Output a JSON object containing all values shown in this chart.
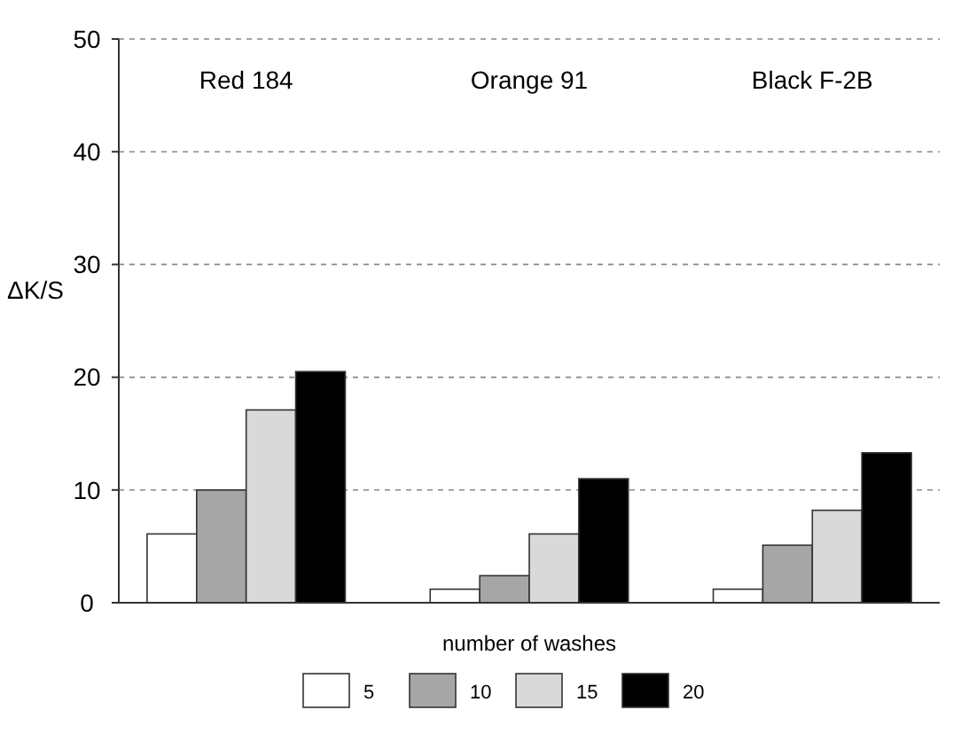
{
  "chart_data": {
    "type": "bar",
    "ylabel": "ΔK/S",
    "xlabel": "number of washes",
    "categories": [
      "Red 184",
      "Orange 91",
      "Black F-2B"
    ],
    "series": [
      {
        "name": "5",
        "color": "#ffffff",
        "values": [
          6.1,
          1.2,
          1.2
        ]
      },
      {
        "name": "10",
        "color": "#a6a6a6",
        "values": [
          10.0,
          2.4,
          5.1
        ]
      },
      {
        "name": "15",
        "color": "#d9d9d9",
        "values": [
          17.1,
          6.1,
          8.2
        ]
      },
      {
        "name": "20",
        "color": "#000000",
        "values": [
          20.5,
          11.0,
          13.3
        ]
      }
    ],
    "ylim": [
      0,
      50
    ],
    "yticks": [
      0,
      10,
      20,
      30,
      40,
      50
    ],
    "grid": "y",
    "legend": "bottom"
  }
}
